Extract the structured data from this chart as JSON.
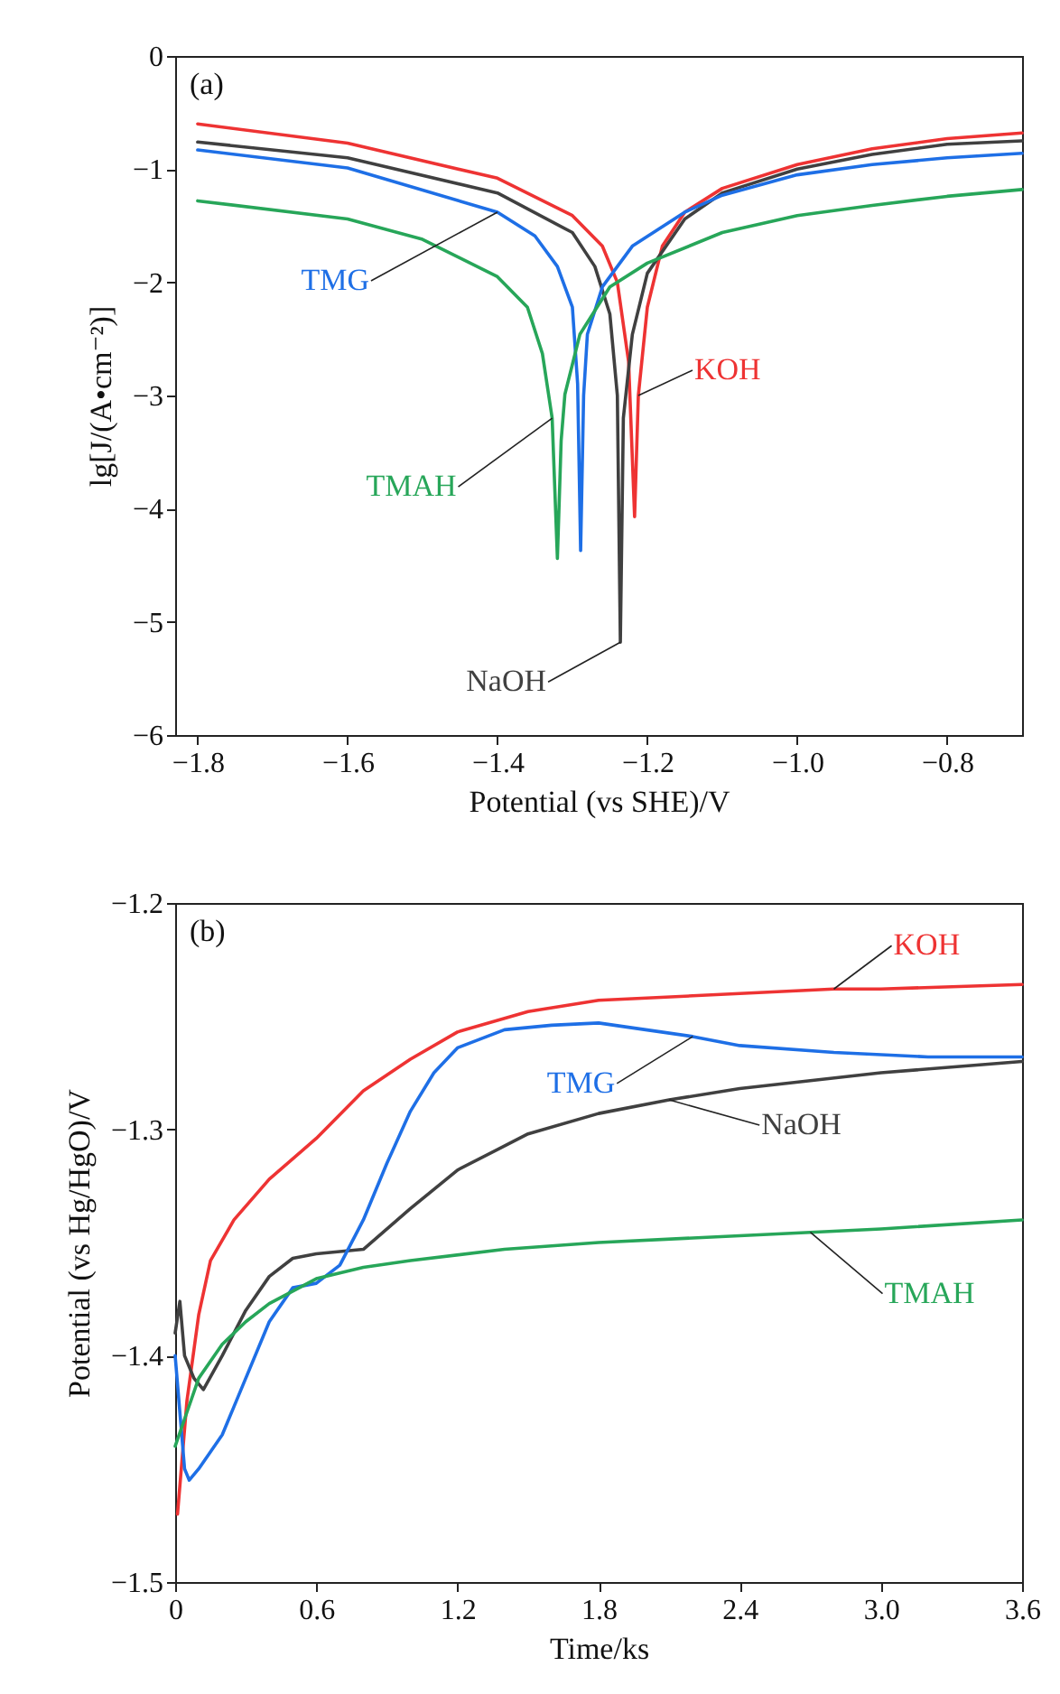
{
  "chart_data": [
    {
      "type": "line",
      "xlabel": "Potential (vs SHE)/V",
      "ylabel": "lg[J/(A•cm⁻²)]",
      "xlim": [
        -1.83,
        -0.7
      ],
      "ylim": [
        -6,
        0
      ],
      "xticks": [
        -1.8,
        -1.6,
        -1.4,
        -1.2,
        {
          "value": -1,
          "label": "−1.0"
        },
        -0.8
      ],
      "yticks": [
        -6,
        -5,
        -4,
        -3,
        -2,
        -1,
        0
      ],
      "annotations": [
        "(a)"
      ],
      "series": [
        {
          "name": "KOH",
          "color": "#ee3333",
          "x": [
            -1.8,
            -1.6,
            -1.4,
            -1.3,
            -1.26,
            -1.24,
            -1.225,
            -1.217,
            -1.212,
            -1.2,
            -1.18,
            -1.15,
            -1.1,
            -1.0,
            -0.9,
            -0.8,
            -0.7
          ],
          "values": [
            -0.6,
            -0.77,
            -1.08,
            -1.41,
            -1.68,
            -2.0,
            -2.7,
            -4.07,
            -3.0,
            -2.22,
            -1.68,
            -1.38,
            -1.17,
            -0.96,
            -0.82,
            -0.73,
            -0.68
          ]
        },
        {
          "name": "NaOH",
          "color": "#404040",
          "x": [
            -1.8,
            -1.6,
            -1.4,
            -1.3,
            -1.27,
            -1.25,
            -1.24,
            -1.236,
            -1.232,
            -1.22,
            -1.2,
            -1.15,
            -1.1,
            -1.0,
            -0.9,
            -0.8,
            -0.7
          ],
          "values": [
            -0.76,
            -0.9,
            -1.21,
            -1.56,
            -1.86,
            -2.28,
            -3.0,
            -5.18,
            -3.2,
            -2.46,
            -1.92,
            -1.44,
            -1.21,
            -1.0,
            -0.87,
            -0.78,
            -0.75
          ]
        },
        {
          "name": "TMG",
          "color": "#1e6fe6",
          "x": [
            -1.8,
            -1.6,
            -1.4,
            -1.35,
            -1.32,
            -1.3,
            -1.293,
            -1.289,
            -1.285,
            -1.28,
            -1.26,
            -1.22,
            -1.15,
            -1.1,
            -1.0,
            -0.9,
            -0.8,
            -0.7
          ],
          "values": [
            -0.83,
            -0.99,
            -1.38,
            -1.59,
            -1.86,
            -2.22,
            -2.9,
            -4.37,
            -3.0,
            -2.46,
            -2.04,
            -1.68,
            -1.38,
            -1.23,
            -1.05,
            -0.96,
            -0.9,
            -0.86
          ]
        },
        {
          "name": "TMAH",
          "color": "#27a659",
          "x": [
            -1.8,
            -1.6,
            -1.5,
            -1.4,
            -1.36,
            -1.34,
            -1.327,
            -1.32,
            -1.315,
            -1.31,
            -1.29,
            -1.25,
            -1.2,
            -1.1,
            -1.0,
            -0.9,
            -0.8,
            -0.7
          ],
          "values": [
            -1.28,
            -1.44,
            -1.62,
            -1.95,
            -2.22,
            -2.63,
            -3.2,
            -4.44,
            -3.4,
            -2.99,
            -2.46,
            -2.04,
            -1.83,
            -1.56,
            -1.41,
            -1.32,
            -1.24,
            -1.18
          ]
        }
      ]
    },
    {
      "type": "line",
      "xlabel": "Time/ks",
      "ylabel": "Potential (vs Hg/HgO)/V",
      "xlim": [
        0,
        3.6
      ],
      "ylim": [
        -1.5,
        -1.2
      ],
      "xticks": [
        0,
        0.6,
        1.2,
        1.8,
        2.4,
        {
          "value": 3,
          "label": "3.0"
        },
        3.6
      ],
      "yticks": [
        -1.5,
        -1.4,
        -1.3,
        -1.2
      ],
      "annotations": [
        "(b)"
      ],
      "series": [
        {
          "name": "KOH",
          "color": "#ee3333",
          "x": [
            0.01,
            0.05,
            0.1,
            0.15,
            0.25,
            0.4,
            0.6,
            0.8,
            1.0,
            1.2,
            1.5,
            1.8,
            2.4,
            2.8,
            3.0,
            3.6
          ],
          "values": [
            -1.47,
            -1.42,
            -1.382,
            -1.358,
            -1.34,
            -1.322,
            -1.304,
            -1.283,
            -1.269,
            -1.257,
            -1.248,
            -1.243,
            -1.24,
            -1.238,
            -1.238,
            -1.236
          ]
        },
        {
          "name": "NaOH",
          "color": "#404040",
          "x": [
            0,
            0.02,
            0.04,
            0.08,
            0.12,
            0.2,
            0.3,
            0.4,
            0.5,
            0.6,
            0.8,
            1.0,
            1.2,
            1.5,
            1.8,
            2.1,
            2.4,
            3.0,
            3.6
          ],
          "values": [
            -1.39,
            -1.376,
            -1.4,
            -1.41,
            -1.415,
            -1.4,
            -1.38,
            -1.365,
            -1.357,
            -1.355,
            -1.353,
            -1.335,
            -1.318,
            -1.302,
            -1.293,
            -1.287,
            -1.282,
            -1.275,
            -1.27
          ]
        },
        {
          "name": "TMG",
          "color": "#1e6fe6",
          "x": [
            0,
            0.04,
            0.06,
            0.1,
            0.2,
            0.3,
            0.4,
            0.5,
            0.6,
            0.7,
            0.8,
            0.9,
            1.0,
            1.1,
            1.2,
            1.4,
            1.6,
            1.8,
            2.0,
            2.2,
            2.4,
            2.8,
            3.2,
            3.6
          ],
          "values": [
            -1.4,
            -1.45,
            -1.455,
            -1.45,
            -1.435,
            -1.41,
            -1.385,
            -1.37,
            -1.368,
            -1.36,
            -1.34,
            -1.315,
            -1.292,
            -1.275,
            -1.264,
            -1.256,
            -1.254,
            -1.253,
            -1.256,
            -1.259,
            -1.263,
            -1.266,
            -1.268,
            -1.268
          ]
        },
        {
          "name": "TMAH",
          "color": "#27a659",
          "x": [
            0,
            0.05,
            0.1,
            0.2,
            0.3,
            0.4,
            0.6,
            0.8,
            1.0,
            1.4,
            1.8,
            2.4,
            2.7,
            3.0,
            3.6
          ],
          "values": [
            -1.44,
            -1.425,
            -1.41,
            -1.395,
            -1.385,
            -1.377,
            -1.366,
            -1.361,
            -1.358,
            -1.353,
            -1.35,
            -1.347,
            -1.3455,
            -1.344,
            -1.34
          ]
        }
      ]
    }
  ]
}
